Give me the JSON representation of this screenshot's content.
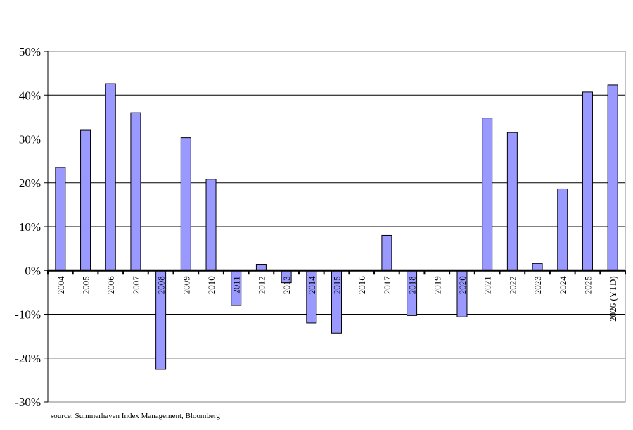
{
  "chart_data": {
    "type": "bar",
    "title": "",
    "xlabel": "",
    "ylabel": "",
    "categories": [
      "2004",
      "2005",
      "2006",
      "2007",
      "2008",
      "2009",
      "2010",
      "2011",
      "2012",
      "2013",
      "2014",
      "2015",
      "2016",
      "2017",
      "2018",
      "2019",
      "2020",
      "2021",
      "2022",
      "2023",
      "2024",
      "2025",
      "2026 (YTD)"
    ],
    "series": [
      {
        "values": [
          23.5,
          32.0,
          42.6,
          36.0,
          -22.6,
          30.3,
          20.8,
          -8.0,
          1.4,
          -2.8,
          -12.0,
          -14.3,
          0.0,
          8.0,
          -10.3,
          0.0,
          -10.6,
          34.8,
          31.5,
          1.6,
          18.6,
          40.7,
          42.3
        ],
        "color": "#9999ff"
      }
    ],
    "ylim": [
      -30,
      50
    ],
    "yticks": [
      "50%",
      "40%",
      "30%",
      "20%",
      "10%",
      "0%",
      "-10%",
      "-20%",
      "-30%"
    ],
    "grid": "horizontal",
    "legend": "none"
  },
  "source_note": "source: Summerhaven Index Management, Bloomberg"
}
